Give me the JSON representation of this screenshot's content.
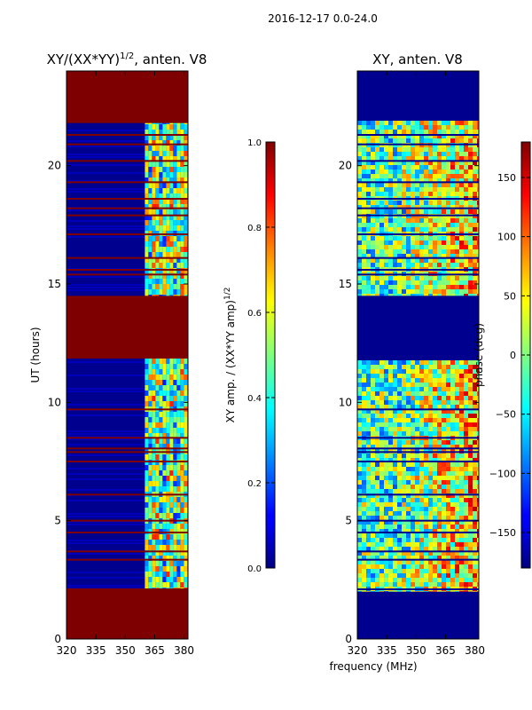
{
  "figure": {
    "suptitle": "2016-12-17 0.0-24.0",
    "xlabel": "frequency (MHz)"
  },
  "colors": {
    "saturated": "#7f0000",
    "low": "#00008f",
    "low2": "#0000c8",
    "frame": "#000000"
  },
  "chart_data": [
    {
      "type": "heatmap",
      "title": "XY/(XX*YY)^{1/2}, anten. V8",
      "title_main": "XY/(XX*YY)",
      "title_sup": "1/2",
      "title_tail": ", anten. V8",
      "ylabel": "UT (hours)",
      "x_range": [
        320,
        382
      ],
      "y_range": [
        0,
        24
      ],
      "xticks": [
        320,
        335,
        350,
        365,
        380
      ],
      "yticks": [
        0,
        5,
        10,
        15,
        20
      ],
      "flagged_hours": [
        [
          0,
          2.1
        ],
        [
          11.85,
          14.5
        ],
        [
          21.8,
          24
        ]
      ],
      "rfi_lines_hours": [
        2.1,
        3.35,
        3.7,
        4.5,
        5.0,
        6.1,
        7.5,
        7.9,
        8.05,
        8.5,
        9.7,
        15.4,
        15.6,
        16.1,
        17.1,
        17.9,
        18.2,
        18.6,
        19.3,
        20.2,
        20.9,
        21.3
      ],
      "bright_band_mhz": [
        360,
        382
      ],
      "colorbar": {
        "label_main": "XY amp. / (XX*YY amp)",
        "label_sup": "1/2",
        "range": [
          0.0,
          1.0
        ],
        "ticks": [
          "0.0",
          "0.2",
          "0.4",
          "0.6",
          "0.8",
          "1.0"
        ],
        "tick_values": [
          0.0,
          0.2,
          0.4,
          0.6,
          0.8,
          1.0
        ]
      }
    },
    {
      "type": "heatmap",
      "title": "XY, anten. V8",
      "ylabel": "",
      "x_range": [
        320,
        382
      ],
      "y_range": [
        0,
        24
      ],
      "xticks": [
        320,
        335,
        350,
        365,
        380
      ],
      "yticks": [
        0,
        5,
        10,
        15,
        20
      ],
      "flagged_hours": [
        [
          0,
          2.0
        ],
        [
          14.5,
          11.85
        ],
        [
          21.9,
          24
        ]
      ],
      "colorbar": {
        "label": "phase (deg)",
        "range": [
          -180,
          180
        ],
        "ticks": [
          "150",
          "100",
          "50",
          "0",
          "−50",
          "−100",
          "−150"
        ],
        "tick_values": [
          150,
          100,
          50,
          0,
          -50,
          -100,
          -150
        ]
      }
    }
  ]
}
